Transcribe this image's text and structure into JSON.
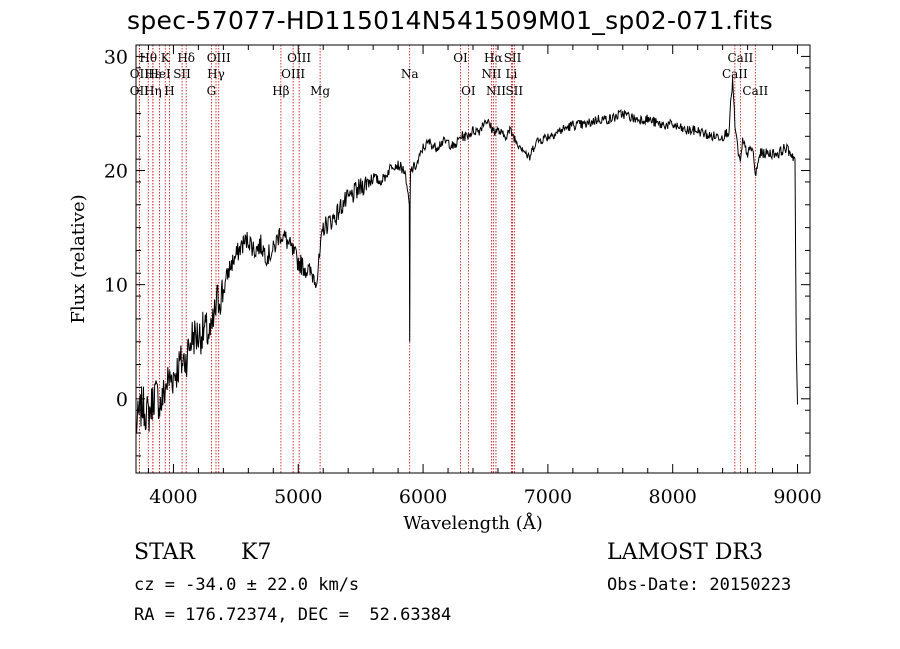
{
  "title": "spec-57077-HD115014N541509M01_sp02-071.fits",
  "info": {
    "class": "STAR",
    "subclass": "K7",
    "survey": "LAMOST DR3",
    "cz": "cz = -34.0 ± 22.0 km/s",
    "obs_date": "Obs-Date: 20150223",
    "coords": "RA = 176.72374, DEC =  52.63384"
  },
  "colors": {
    "line": "#000000",
    "marker": "#cc0000",
    "background": "#ffffff"
  },
  "chart_data": {
    "type": "line",
    "title": "spec-57077-HD115014N541509M01_sp02-071.fits",
    "xlabel": "Wavelength (Å)",
    "ylabel": "Flux (relative)",
    "xlim": [
      3700,
      9100
    ],
    "ylim": [
      -6.5,
      31
    ],
    "xticks": [
      4000,
      5000,
      6000,
      7000,
      8000,
      9000
    ],
    "yticks": [
      0,
      10,
      20,
      30
    ],
    "series": [
      {
        "name": "flux",
        "x": [
          3700,
          3750,
          3800,
          3850,
          3900,
          3950,
          4000,
          4050,
          4100,
          4150,
          4200,
          4250,
          4300,
          4350,
          4400,
          4450,
          4500,
          4550,
          4600,
          4650,
          4700,
          4750,
          4800,
          4850,
          4900,
          4950,
          5000,
          5050,
          5100,
          5150,
          5200,
          5250,
          5300,
          5350,
          5400,
          5450,
          5500,
          5550,
          5600,
          5650,
          5700,
          5750,
          5800,
          5850,
          5890,
          5893,
          5896,
          5900,
          5950,
          6000,
          6050,
          6100,
          6150,
          6200,
          6250,
          6300,
          6350,
          6400,
          6450,
          6500,
          6563,
          6600,
          6650,
          6700,
          6750,
          6800,
          6850,
          6900,
          7000,
          7100,
          7200,
          7300,
          7400,
          7500,
          7600,
          7700,
          7800,
          7900,
          8000,
          8100,
          8200,
          8300,
          8400,
          8450,
          8480,
          8498,
          8520,
          8542,
          8560,
          8600,
          8640,
          8662,
          8700,
          8750,
          8800,
          8850,
          8900,
          8950,
          8980,
          8990,
          9000
        ],
        "y": [
          -2.5,
          -0.5,
          -1.5,
          0.5,
          -0.5,
          1.5,
          2.0,
          3.0,
          3.5,
          5.5,
          5.5,
          6.0,
          5.5,
          8.5,
          9.5,
          11.5,
          12.5,
          13.5,
          14.0,
          13.0,
          13.5,
          12.5,
          13.0,
          14.5,
          14.0,
          13.0,
          12.0,
          11.5,
          11.0,
          10.5,
          15.0,
          15.5,
          16.0,
          17.0,
          17.5,
          18.0,
          18.5,
          19.0,
          19.5,
          19.0,
          19.5,
          20.5,
          20.5,
          20.0,
          17.0,
          5.0,
          17.0,
          20.0,
          20.5,
          22.0,
          22.5,
          22.0,
          22.5,
          22.5,
          22.0,
          23.0,
          23.0,
          23.5,
          23.5,
          24.5,
          23.5,
          23.5,
          23.0,
          23.5,
          22.5,
          22.0,
          21.0,
          22.5,
          23.0,
          23.5,
          24.0,
          24.0,
          24.5,
          24.5,
          25.0,
          24.5,
          24.5,
          24.0,
          24.0,
          23.5,
          23.5,
          23.0,
          23.0,
          23.5,
          28.0,
          24.0,
          22.0,
          20.5,
          22.5,
          21.5,
          22.0,
          19.5,
          21.5,
          21.5,
          21.5,
          21.5,
          22.0,
          21.5,
          21.0,
          4.5,
          -0.5
        ]
      }
    ],
    "lines": [
      {
        "name": "Hθ",
        "wave": 3798,
        "row": 1
      },
      {
        "name": "OII",
        "wave": 3727,
        "row": 2
      },
      {
        "name": "OII",
        "wave": 3727,
        "row": 3
      },
      {
        "name": "Hε",
        "wave": 3835,
        "row": 2
      },
      {
        "name": "Hη",
        "wave": 3835,
        "row": 3
      },
      {
        "name": "K",
        "wave": 3934,
        "row": 1
      },
      {
        "name": "HeI",
        "wave": 3889,
        "row": 2
      },
      {
        "name": "H",
        "wave": 3968,
        "row": 3
      },
      {
        "name": "Hδ",
        "wave": 4102,
        "row": 1
      },
      {
        "name": "SII",
        "wave": 4069,
        "row": 2
      },
      {
        "name": "OIII",
        "wave": 4363,
        "row": 1
      },
      {
        "name": "Hγ",
        "wave": 4341,
        "row": 2
      },
      {
        "name": "G",
        "wave": 4304,
        "row": 3
      },
      {
        "name": "Hβ",
        "wave": 4861,
        "row": 3
      },
      {
        "name": "OIII",
        "wave": 5007,
        "row": 1
      },
      {
        "name": "OIII",
        "wave": 4959,
        "row": 2
      },
      {
        "name": "Mg",
        "wave": 5175,
        "row": 3
      },
      {
        "name": "Na",
        "wave": 5893,
        "row": 2
      },
      {
        "name": "OI",
        "wave": 6300,
        "row": 1
      },
      {
        "name": "OI",
        "wave": 6363,
        "row": 3
      },
      {
        "name": "Hα",
        "wave": 6563,
        "row": 1
      },
      {
        "name": "SII",
        "wave": 6717,
        "row": 1
      },
      {
        "name": "NII",
        "wave": 6548,
        "row": 2
      },
      {
        "name": "Li",
        "wave": 6708,
        "row": 2
      },
      {
        "name": "NII",
        "wave": 6584,
        "row": 3
      },
      {
        "name": "SII",
        "wave": 6731,
        "row": 3
      },
      {
        "name": "CaII",
        "wave": 8542,
        "row": 1
      },
      {
        "name": "CaII",
        "wave": 8498,
        "row": 2
      },
      {
        "name": "CaII",
        "wave": 8662,
        "row": 3
      }
    ]
  }
}
